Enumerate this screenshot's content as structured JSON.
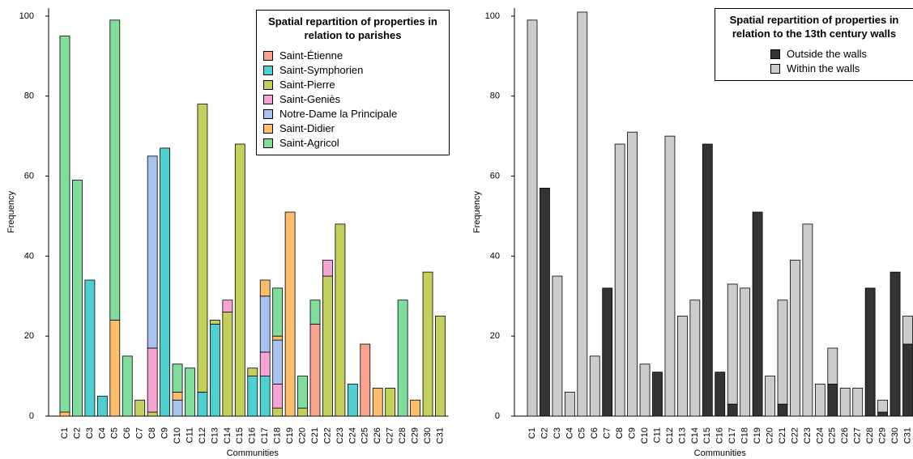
{
  "chart_data": [
    {
      "type": "bar",
      "stacked": true,
      "title": "Spatial repartition of properties in relation to parishes",
      "xlabel": "Communities",
      "ylabel": "Frequency",
      "categories": [
        "C1",
        "C2",
        "C3",
        "C4",
        "C5",
        "C6",
        "C7",
        "C8",
        "C9",
        "C10",
        "C11",
        "C12",
        "C13",
        "C14",
        "C15",
        "C16",
        "C17",
        "C18",
        "C19",
        "C20",
        "C21",
        "C22",
        "C23",
        "C24",
        "C25",
        "C26",
        "C27",
        "C28",
        "C29",
        "C30",
        "C31"
      ],
      "series": [
        {
          "name": "Saint-Étienne",
          "color": "#f9a48f",
          "values": [
            0,
            0,
            0,
            0,
            0,
            0,
            0,
            0,
            0,
            0,
            0,
            0,
            0,
            0,
            0,
            0,
            0,
            0,
            0,
            0,
            23,
            0,
            0,
            0,
            18,
            0,
            0,
            0,
            0,
            0,
            0
          ]
        },
        {
          "name": "Saint-Symphorien",
          "color": "#4fd0d0",
          "values": [
            0,
            0,
            34,
            5,
            0,
            0,
            0,
            0,
            67,
            0,
            0,
            6,
            23,
            0,
            0,
            10,
            10,
            0,
            0,
            0,
            0,
            0,
            0,
            8,
            0,
            0,
            0,
            0,
            0,
            0,
            0
          ]
        },
        {
          "name": "Saint-Pierre",
          "color": "#c5cf5c",
          "values": [
            0,
            0,
            0,
            0,
            0,
            0,
            4,
            1,
            0,
            0,
            0,
            72,
            1,
            26,
            68,
            2,
            0,
            2,
            0,
            2,
            0,
            35,
            48,
            0,
            0,
            0,
            7,
            0,
            0,
            36,
            25
          ]
        },
        {
          "name": "Saint-Geniès",
          "color": "#f7a3d3",
          "values": [
            0,
            0,
            0,
            0,
            0,
            0,
            0,
            16,
            0,
            0,
            0,
            0,
            0,
            3,
            0,
            0,
            6,
            6,
            0,
            0,
            0,
            4,
            0,
            0,
            0,
            0,
            0,
            0,
            0,
            0,
            0
          ]
        },
        {
          "name": "Notre-Dame la Principale",
          "color": "#a9c2ef",
          "values": [
            0,
            0,
            0,
            0,
            0,
            0,
            0,
            48,
            0,
            4,
            0,
            0,
            0,
            0,
            0,
            0,
            14,
            11,
            0,
            0,
            0,
            0,
            0,
            0,
            0,
            0,
            0,
            0,
            0,
            0,
            0
          ]
        },
        {
          "name": "Saint-Didier",
          "color": "#fdbd6a",
          "values": [
            1,
            0,
            0,
            0,
            24,
            0,
            0,
            0,
            0,
            2,
            0,
            0,
            0,
            0,
            0,
            0,
            4,
            1,
            51,
            0,
            0,
            0,
            0,
            0,
            0,
            7,
            0,
            0,
            4,
            0,
            0
          ]
        },
        {
          "name": "Saint-Agricol",
          "color": "#80dd9c",
          "values": [
            94,
            59,
            0,
            0,
            75,
            15,
            0,
            0,
            0,
            7,
            12,
            0,
            0,
            0,
            0,
            0,
            0,
            12,
            0,
            8,
            6,
            0,
            0,
            0,
            0,
            0,
            0,
            29,
            0,
            0,
            0
          ]
        }
      ],
      "ylim": [
        0,
        102
      ],
      "yticks": [
        0,
        20,
        40,
        60,
        80,
        100
      ]
    },
    {
      "type": "bar",
      "stacked": true,
      "title": "Spatial repartition of properties in relation to the 13th century walls",
      "xlabel": "Communities",
      "ylabel": "Frequency",
      "categories": [
        "C1",
        "C2",
        "C3",
        "C4",
        "C5",
        "C6",
        "C7",
        "C8",
        "C9",
        "C10",
        "C11",
        "C12",
        "C13",
        "C14",
        "C15",
        "C16",
        "C17",
        "C18",
        "C19",
        "C20",
        "C21",
        "C22",
        "C23",
        "C24",
        "C25",
        "C26",
        "C27",
        "C28",
        "C29",
        "C30",
        "C31"
      ],
      "series": [
        {
          "name": "Outside the walls",
          "color": "#333333",
          "values": [
            0,
            57,
            0,
            0,
            0,
            0,
            32,
            0,
            0,
            0,
            11,
            0,
            0,
            0,
            68,
            11,
            3,
            0,
            51,
            0,
            3,
            0,
            0,
            0,
            8,
            0,
            0,
            32,
            1,
            36,
            18
          ]
        },
        {
          "name": "Within the walls",
          "color": "#cccccc",
          "values": [
            99,
            0,
            35,
            6,
            101,
            15,
            0,
            68,
            71,
            13,
            0,
            70,
            25,
            29,
            0,
            0,
            30,
            32,
            0,
            10,
            26,
            39,
            48,
            8,
            9,
            7,
            7,
            0,
            3,
            0,
            7
          ]
        }
      ],
      "ylim": [
        0,
        102
      ],
      "yticks": [
        0,
        20,
        40,
        60,
        80,
        100
      ]
    }
  ]
}
